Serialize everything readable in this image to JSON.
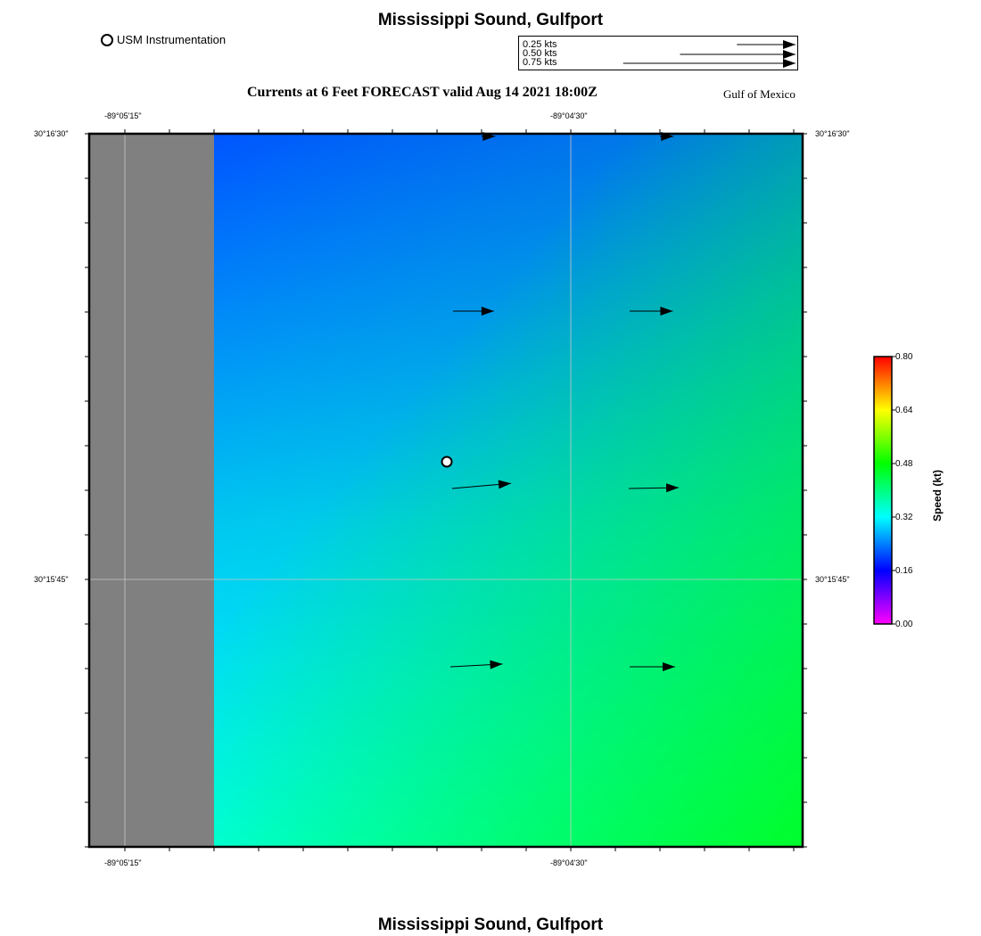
{
  "header": {
    "title": "Mississippi Sound, Gulfport",
    "subtitle": "Currents at 6 Feet FORECAST valid Aug 14 2021 18:00Z",
    "region": "Gulf of Mexico",
    "station_legend": "USM Instrumentation"
  },
  "footer": {
    "title": "Mississippi Sound, Gulfport"
  },
  "scale_legend": {
    "entries": [
      {
        "label": "0.25 kts",
        "speed": 0.25
      },
      {
        "label": "0.50 kts",
        "speed": 0.5
      },
      {
        "label": "0.75 kts",
        "speed": 0.75
      }
    ]
  },
  "axes": {
    "top_lon": [
      "-89°05'15\"",
      "-89°04'30\""
    ],
    "bottom_lon": [
      "-89°05'15\"",
      "-89°04'30\""
    ],
    "left_lat": [
      "30°16'30\"",
      "30°15'45\""
    ],
    "right_lat": [
      "30°16'30\"",
      "30°15'45\""
    ]
  },
  "colorbar": {
    "title": "Speed (kt)",
    "ticks": [
      "0.80",
      "0.64",
      "0.48",
      "0.32",
      "0.16",
      "0.00"
    ],
    "min": 0.0,
    "max": 0.8
  },
  "colors": {
    "land": "#808080",
    "flow_top": "#0055ff",
    "flow_bottom_left": "#00ffff",
    "flow_bottom_right": "#00ff22"
  },
  "current_vectors": [
    {
      "lon": "-89°04'37\"",
      "lat": "30°16'30\"",
      "speed_kt": 0.06,
      "direction_deg": 90
    },
    {
      "lon": "-89°04'19\"",
      "lat": "30°16'30\"",
      "speed_kt": 0.06,
      "direction_deg": 90
    },
    {
      "lon": "-89°04'37\"",
      "lat": "30°16'12\"",
      "speed_kt": 0.18,
      "direction_deg": 90
    },
    {
      "lon": "-89°04'19\"",
      "lat": "30°16'12\"",
      "speed_kt": 0.19,
      "direction_deg": 90
    },
    {
      "lon": "-89°04'37\"",
      "lat": "30°15'54\"",
      "speed_kt": 0.26,
      "direction_deg": 85
    },
    {
      "lon": "-89°04'19\"",
      "lat": "30°15'54\"",
      "speed_kt": 0.22,
      "direction_deg": 89
    },
    {
      "lon": "-89°04'37\"",
      "lat": "30°15'36\"",
      "speed_kt": 0.23,
      "direction_deg": 87
    },
    {
      "lon": "-89°04'19\"",
      "lat": "30°15'36\"",
      "speed_kt": 0.2,
      "direction_deg": 90
    }
  ]
}
